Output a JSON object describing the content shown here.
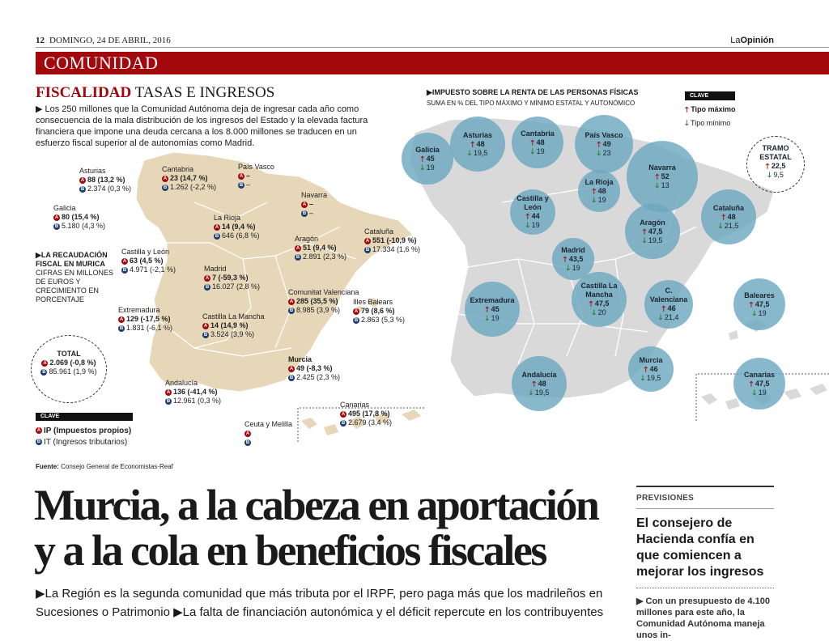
{
  "header": {
    "page_number": "12",
    "date": "DOMINGO, 24 DE ABRIL, 2016",
    "brand_prefix": "La",
    "brand_name": "Opinión",
    "section": "COMUNIDAD",
    "section_color": "#a3080c"
  },
  "fiscalidad": {
    "title_red": "FISCALIDAD",
    "title_rest": "TASAS E INGRESOS",
    "intro": "▶ Los 250 millones que la Comunidad Autónoma deja de ingresar cada año como consecuencia de la mala distribución de los ingresos del Estado y la elevada factura financiera que impone una deuda cercana a los 8.000 millones se traducen en un esfuerzo fiscal superior al de autonomías como Madrid.",
    "recaudacion": {
      "heading": "▶LA RECAUDACIÓN FISCAL EN MURICA",
      "desc": "CIFRAS EN MILLONES DE EUROS Y CRECIMIENTO EN PORCENTAJE"
    },
    "regions": [
      {
        "name": "Asturias",
        "ip": "88 (13,2 %)",
        "it": "2.374 (0,3 %)"
      },
      {
        "name": "Cantabria",
        "ip": "23 (14,7 %)",
        "it": "1.262 (-2,2 %)"
      },
      {
        "name": "País Vasco",
        "ip": "–",
        "it": "–"
      },
      {
        "name": "Galicia",
        "ip": "80 (15,4 %)",
        "it": "5.180 (4,3 %)"
      },
      {
        "name": "Navarra",
        "ip": "–",
        "it": "–"
      },
      {
        "name": "La Rioja",
        "ip": "14 (9,4 %)",
        "it": "646 (6,8 %)"
      },
      {
        "name": "Cataluña",
        "ip": "551 (-10,9 %)",
        "it": "17.334 (1,6 %)"
      },
      {
        "name": "Aragón",
        "ip": "51 (9,4 %)",
        "it": "2.891 (2,3 %)"
      },
      {
        "name": "Castilla y León",
        "ip": "63 (4,5 %)",
        "it": "4.971 (-2,1 %)"
      },
      {
        "name": "Madrid",
        "ip": "7 (-59,3 %)",
        "it": "16.027 (2,8 %)"
      },
      {
        "name": "Comunitat Valenciana",
        "ip": "285 (35,5 %)",
        "it": "8.985 (3,9 %)"
      },
      {
        "name": "Illes Balears",
        "ip": "79 (8,6 %)",
        "it": "2.863 (5,3 %)"
      },
      {
        "name": "Extremadura",
        "ip": "129 (-17,5 %)",
        "it": "1.831 (-6,1 %)"
      },
      {
        "name": "Castilla La Mancha",
        "ip": "14 (14,9 %)",
        "it": "3.524 (3,9 %)"
      },
      {
        "name": "Murcia",
        "ip": "49 (-8,3 %)",
        "it": "2.425 (2,3 %)"
      },
      {
        "name": "Andalucía",
        "ip": "136 (-41,4 %)",
        "it": "12.961 (0,3 %)"
      },
      {
        "name": "Canarias",
        "ip": "495 (17,8 %)",
        "it": "2.679 (3,4 %)"
      },
      {
        "name": "Ceuta y Melilla",
        "ip": "",
        "it": ""
      }
    ],
    "total": {
      "label": "TOTAL",
      "ip": "2.069 (-0,8 %)",
      "it": "85.961 (1,9 %)"
    },
    "clave": {
      "label": "CLAVE",
      "ip": "IP (Impuestos propios)",
      "it": "IT (Ingresos tributarios)"
    },
    "fuente_label": "Fuente:",
    "fuente": "Consejo General de Economistas-Reaf",
    "map_color": "#e6d7b8"
  },
  "irpf": {
    "title": "▶IMPUESTO SOBRE LA RENTA DE LAS PERSONAS FÍSICAS",
    "subtitle": "SUMA EN % DEL TIPO MÁXIMO Y MÍNIMO ESTATAL Y AUTONÓMICO",
    "clave_label": "CLAVE",
    "max_label": "Tipo máximo",
    "min_label": "Tipo mínimo",
    "tramo": {
      "label": "TRAMO ESTATAL",
      "max": "22,5",
      "min": "9,5"
    },
    "map_color": "#d9d9d9",
    "bubble_color": "#6ea8c0",
    "regions": [
      {
        "name": "Galicia",
        "max": "45",
        "min": "19"
      },
      {
        "name": "Asturias",
        "max": "48",
        "min": "19,5"
      },
      {
        "name": "Cantabria",
        "max": "48",
        "min": "19"
      },
      {
        "name": "País Vasco",
        "max": "49",
        "min": "23"
      },
      {
        "name": "Navarra",
        "max": "52",
        "min": "13"
      },
      {
        "name": "La Rioja",
        "max": "48",
        "min": "19"
      },
      {
        "name": "Castilla y León",
        "max": "44",
        "min": "19"
      },
      {
        "name": "Aragón",
        "max": "47,5",
        "min": "19,5"
      },
      {
        "name": "Cataluña",
        "max": "48",
        "min": "21,5"
      },
      {
        "name": "Madrid",
        "max": "43,5",
        "min": "19"
      },
      {
        "name": "Extremadura",
        "max": "45",
        "min": "19"
      },
      {
        "name": "Castilla La Mancha",
        "max": "47,5",
        "min": "20"
      },
      {
        "name": "C. Valenciana",
        "max": "46",
        "min": "21,4"
      },
      {
        "name": "Baleares",
        "max": "47,5",
        "min": "19"
      },
      {
        "name": "Murcia",
        "max": "46",
        "min": "19,5"
      },
      {
        "name": "Andalucía",
        "max": "48",
        "min": "19,5"
      },
      {
        "name": "Canarias",
        "max": "47,5",
        "min": "19"
      }
    ]
  },
  "article": {
    "headline": "Murcia, a la cabeza en aportación y a la cola en beneficios fiscales",
    "deck": "▶La Región es la segunda comunidad que más tributa por el IRPF, pero paga más que los madrileños en Sucesiones o Patrimonio ▶La falta de financiación autonómica y el déficit repercute en los contribuyentes"
  },
  "sidebar": {
    "label": "PREVISIONES",
    "title": "El consejero de Hacienda confía en que comiencen a mejorar los ingresos",
    "body": "▶ Con un presupuesto de 4.100 millones para este año, la Comunidad Autónoma maneja unos in-"
  }
}
